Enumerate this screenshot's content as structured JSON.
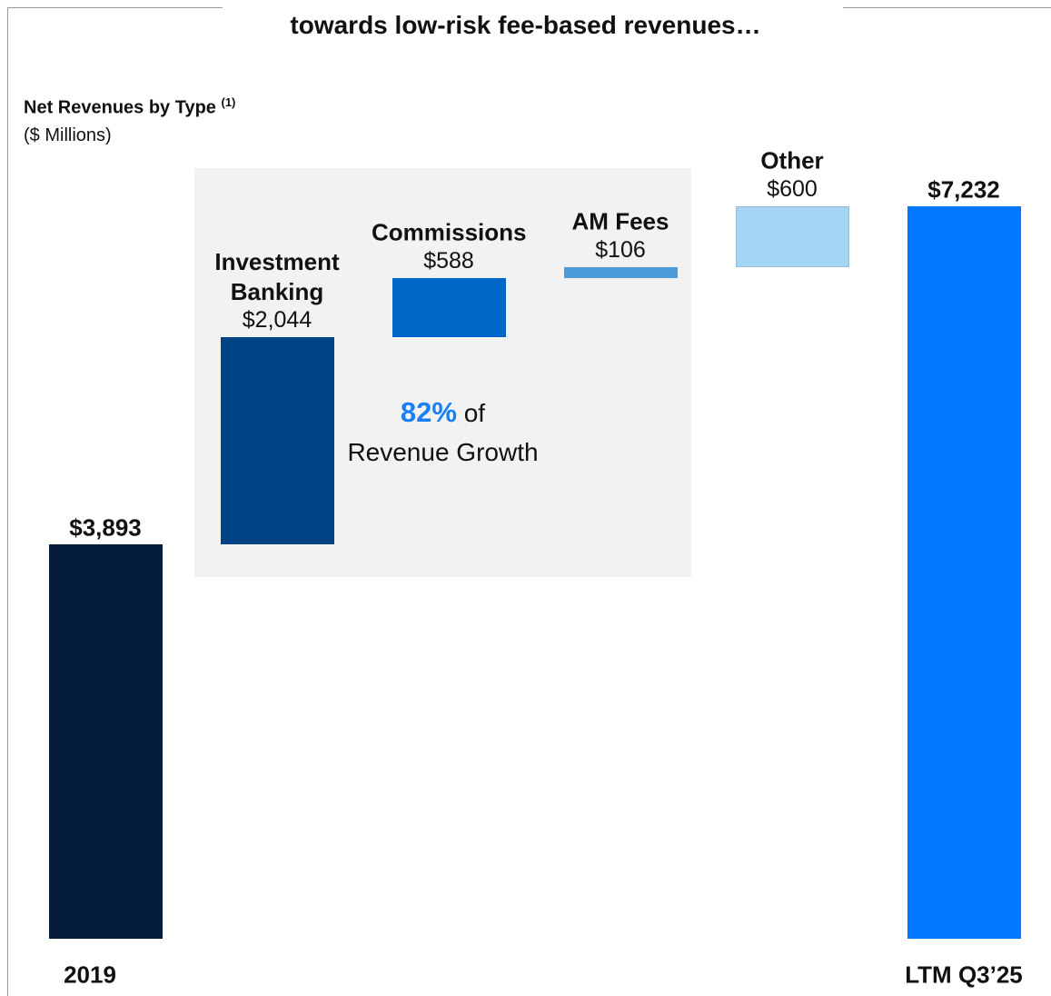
{
  "chart_data": {
    "type": "waterfall",
    "title": "towards low-risk fee-based revenues…",
    "subtitle": "Net Revenues by Type",
    "subtitle_note": "(1)",
    "units": "($ Millions)",
    "categories": [
      "2019",
      "Investment Banking",
      "Commissions",
      "AM Fees",
      "Other",
      "LTM Q3’25"
    ],
    "measure": [
      "absolute",
      "relative",
      "relative",
      "relative",
      "relative",
      "total"
    ],
    "values": [
      3893,
      2044,
      588,
      106,
      600,
      7232
    ],
    "value_labels": [
      "$3,893",
      "$2,044",
      "$588",
      "$106",
      "$600",
      "$7,232"
    ],
    "colors": [
      "#041c3a",
      "#004385",
      "#0066c8",
      "#4d9ad8",
      "#a5d5f5",
      "#0077ff"
    ],
    "annotation": {
      "highlight": "82%",
      "text1": "of",
      "text2": "Revenue Growth"
    }
  }
}
